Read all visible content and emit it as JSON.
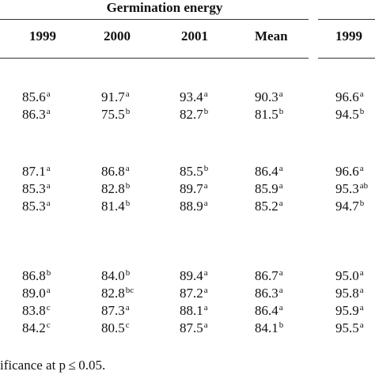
{
  "group_title": "Germination energy",
  "columns": [
    "1999",
    "2000",
    "2001",
    "Mean",
    "1999"
  ],
  "groups": [
    {
      "rows": [
        [
          [
            "85.6",
            "a"
          ],
          [
            "91.7",
            "a"
          ],
          [
            "93.4",
            "a"
          ],
          [
            "90.3",
            "a"
          ],
          [
            "96.6",
            "a"
          ]
        ],
        [
          [
            "86.3",
            "a"
          ],
          [
            "75.5",
            "b"
          ],
          [
            "82.7",
            "b"
          ],
          [
            "81.5",
            "b"
          ],
          [
            "94.5",
            "b"
          ]
        ]
      ]
    },
    {
      "rows": [
        [
          [
            "87.1",
            "a"
          ],
          [
            "86.8",
            "a"
          ],
          [
            "85.5",
            "b"
          ],
          [
            "86.4",
            "a"
          ],
          [
            "96.6",
            "a"
          ]
        ],
        [
          [
            "85.3",
            "a"
          ],
          [
            "82.8",
            "b"
          ],
          [
            "89.7",
            "a"
          ],
          [
            "85.9",
            "a"
          ],
          [
            "95.3",
            "ab"
          ]
        ],
        [
          [
            "85.3",
            "a"
          ],
          [
            "81.4",
            "b"
          ],
          [
            "88.9",
            "a"
          ],
          [
            "85.2",
            "a"
          ],
          [
            "94.7",
            "b"
          ]
        ]
      ]
    },
    {
      "rows": [
        [
          [
            "86.8",
            "b"
          ],
          [
            "84.0",
            "b"
          ],
          [
            "89.4",
            "a"
          ],
          [
            "86.7",
            "a"
          ],
          [
            "95.0",
            "a"
          ]
        ],
        [
          [
            "89.0",
            "a"
          ],
          [
            "82.8",
            "bc"
          ],
          [
            "87.2",
            "a"
          ],
          [
            "86.3",
            "a"
          ],
          [
            "95.8",
            "a"
          ]
        ],
        [
          [
            "83.8",
            "c"
          ],
          [
            "87.3",
            "a"
          ],
          [
            "88.1",
            "a"
          ],
          [
            "86.4",
            "a"
          ],
          [
            "95.9",
            "a"
          ]
        ],
        [
          [
            "84.2",
            "c"
          ],
          [
            "80.5",
            "c"
          ],
          [
            "87.5",
            "a"
          ],
          [
            "84.1",
            "b"
          ],
          [
            "95.5",
            "a"
          ]
        ]
      ]
    }
  ],
  "footnote": "ificance at p ≤ 0.05."
}
